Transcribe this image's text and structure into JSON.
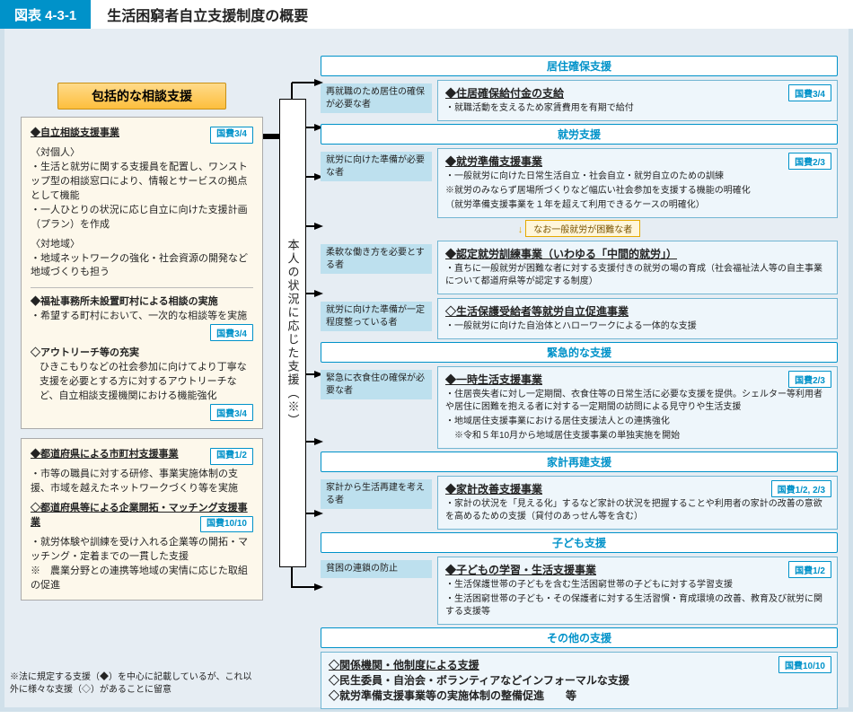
{
  "colors": {
    "border": "#d0e0ea",
    "bg": "#e6edf3",
    "accent": "#0092c9",
    "leftBox": "#fdf8eb",
    "cond": "#bde0ee",
    "detailBg": "#eef6fb",
    "detailBorder": "#72b6d3",
    "leftTitleGradTop": "#ffdb8a",
    "leftTitleGradBot": "#fdbf3d"
  },
  "title": {
    "badge": "図表 4-3-1",
    "text": "生活困窮者自立支援制度の概要"
  },
  "left": {
    "heading": "包括的な相談支援",
    "box1": {
      "h": "◆自立相談支援事業",
      "kokuhi": "国費3/4",
      "p1": "〈対個人〉",
      "p2": "・生活と就労に関する支援員を配置し、ワンストップ型の相談窓口により、情報とサービスの拠点として機能",
      "p3": "・一人ひとりの状況に応じ自立に向けた支援計画（プラン）を作成",
      "p4": "〈対地域〉",
      "p5": "・地域ネットワークの強化・社会資源の開発など地域づくりも担う",
      "h2": "◆福祉事務所未設置町村による相談の実施",
      "p6": "・希望する町村において、一次的な相談等を実施",
      "kokuhi2": "国費3/4",
      "h3": "◇アウトリーチ等の充実",
      "p7": "ひきこもりなどの社会参加に向けてより丁寧な支援を必要とする方に対するアウトリーチなど、自立相談支援機関における機能強化",
      "kokuhi3": "国費3/4"
    },
    "box2": {
      "h": "◆都道府県による市町村支援事業",
      "kokuhi": "国費1/2",
      "p1": "・市等の職員に対する研修、事業実施体制の支援、市域を越えたネットワークづくり等を実施",
      "h2": "◇都道府県等による企業開拓・マッチング支援事業",
      "kokuhi2": "国費10/10",
      "p2": "・就労体験や訓練を受け入れる企業等の開拓・マッチング・定着までの一貫した支援",
      "p3": "※　農業分野との連携等地域の実情に応じた取組の促進"
    }
  },
  "spine": "本人の状況に応じた支援（※）",
  "categories": [
    {
      "label": "居住確保支援",
      "cond": "再就職のため居住の確保が必要な者",
      "detail": {
        "hd": "◆住居確保給付金の支給",
        "kokuhi": "国費3/4",
        "body": "・就職活動を支えるため家賃費用を有期で給付"
      }
    },
    {
      "label": "就労支援",
      "cond": "就労に向けた準備が必要な者",
      "detail": {
        "hd": "◆就労準備支援事業",
        "kokuhi": "国費2/3",
        "body": "・一般就労に向けた日常生活自立・社会自立・就労自立のための訓練\n※就労のみならず居場所づくりなど幅広い社会参加を支援する機能の明確化\n（就労準備支援事業を１年を超えて利用できるケースの明確化）"
      },
      "note": "なお一般就労が困難な者",
      "sub": [
        {
          "cond": "柔軟な働き方を必要とする者",
          "hd": "◆認定就労訓練事業（いわゆる「中間的就労」）",
          "body": "・直ちに一般就労が困難な者に対する支援付きの就労の場の育成（社会福祉法人等の自主事業について都道府県等が認定する制度）"
        },
        {
          "cond": "就労に向けた準備が一定程度整っている者",
          "hd": "◇生活保護受給者等就労自立促進事業",
          "body": "・一般就労に向けた自治体とハローワークによる一体的な支援"
        }
      ]
    },
    {
      "label": "緊急的な支援",
      "cond": "緊急に衣食住の確保が必要な者",
      "detail": {
        "hd": "◆一時生活支援事業",
        "kokuhi": "国費2/3",
        "body": "・住居喪失者に対し一定期間、衣食住等の日常生活に必要な支援を提供。シェルター等利用者や居住に困難を抱える者に対する一定期間の訪問による見守りや生活支援\n・地域居住支援事業における居住支援法人との連携強化\n　※令和５年10月から地域居住支援事業の単独実施を開始"
      }
    },
    {
      "label": "家計再建支援",
      "cond": "家計から生活再建を考える者",
      "detail": {
        "hd": "◆家計改善支援事業",
        "kokuhi": "国費1/2, 2/3",
        "body": "・家計の状況を「見える化」するなど家計の状況を把握することや利用者の家計の改善の意欲を高めるための支援（貸付のあっせん等を含む）"
      }
    },
    {
      "label": "子ども支援",
      "cond": "貧困の連鎖の防止",
      "detail": {
        "hd": "◆子どもの学習・生活支援事業",
        "kokuhi": "国費1/2",
        "body": "・生活保護世帯の子どもを含む生活困窮世帯の子どもに対する学習支援\n・生活困窮世帯の子ども・その保護者に対する生活習慣・育成環境の改善、教育及び就労に関する支援等"
      }
    },
    {
      "label": "その他の支援",
      "detail": {
        "hd": "◇関係機関・他制度による支援",
        "kokuhi": "国費10/10",
        "body2": "◇民生委員・自治会・ボランティアなどインフォーマルな支援",
        "body3": "◇就労準備支援事業等の実施体制の整備促進　　等"
      }
    }
  ],
  "footnote": "※法に規定する支援（◆）を中心に記載しているが、これ以外に様々な支援（◇）があることに留意"
}
